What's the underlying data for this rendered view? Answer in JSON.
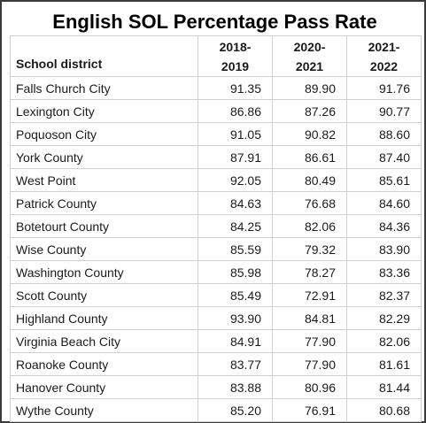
{
  "chart_data": {
    "type": "table",
    "title": "English SOL Percentage Pass Rate",
    "columns": [
      {
        "label_line1": "",
        "label_line2": "School district"
      },
      {
        "label_line1": "2018-",
        "label_line2": "2019"
      },
      {
        "label_line1": "2020-",
        "label_line2": "2021"
      },
      {
        "label_line1": "2021-",
        "label_line2": "2022"
      }
    ],
    "rows": [
      {
        "district": "Falls Church City",
        "values": [
          "91.35",
          "89.90",
          "91.76"
        ]
      },
      {
        "district": "Lexington City",
        "values": [
          "86.86",
          "87.26",
          "90.77"
        ]
      },
      {
        "district": "Poquoson City",
        "values": [
          "91.05",
          "90.82",
          "88.60"
        ]
      },
      {
        "district": "York County",
        "values": [
          "87.91",
          "86.61",
          "87.40"
        ]
      },
      {
        "district": "West Point",
        "values": [
          "92.05",
          "80.49",
          "85.61"
        ]
      },
      {
        "district": "Patrick County",
        "values": [
          "84.63",
          "76.68",
          "84.60"
        ]
      },
      {
        "district": "Botetourt County",
        "values": [
          "84.25",
          "82.06",
          "84.36"
        ]
      },
      {
        "district": "Wise County",
        "values": [
          "85.59",
          "79.32",
          "83.90"
        ]
      },
      {
        "district": "Washington County",
        "values": [
          "85.98",
          "78.27",
          "83.36"
        ]
      },
      {
        "district": "Scott County",
        "values": [
          "85.49",
          "72.91",
          "82.37"
        ]
      },
      {
        "district": "Highland County",
        "values": [
          "93.90",
          "84.81",
          "82.29"
        ]
      },
      {
        "district": "Virginia Beach City",
        "values": [
          "84.91",
          "77.90",
          "82.06"
        ]
      },
      {
        "district": "Roanoke County",
        "values": [
          "83.77",
          "77.90",
          "81.61"
        ]
      },
      {
        "district": "Hanover County",
        "values": [
          "83.88",
          "80.96",
          "81.44"
        ]
      },
      {
        "district": "Wythe County",
        "values": [
          "85.20",
          "76.91",
          "80.68"
        ]
      }
    ]
  }
}
